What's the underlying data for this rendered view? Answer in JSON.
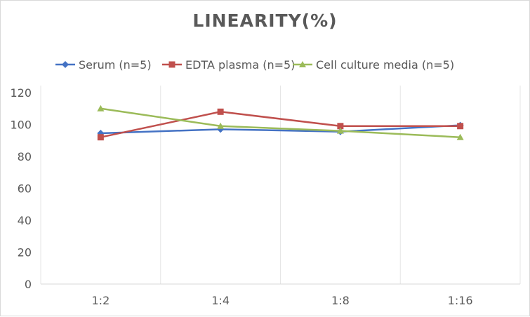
{
  "chart_data": {
    "type": "line",
    "title": "LINEARITY(%)",
    "categories": [
      "1:2",
      "1:4",
      "1:8",
      "1:16"
    ],
    "ylim": [
      0,
      120
    ],
    "yticks": [
      0,
      20,
      40,
      60,
      80,
      100,
      120
    ],
    "grid": "vertical",
    "legend": "top",
    "series": [
      {
        "name": "Serum (n=5)",
        "color": "#4472c4",
        "marker": "diamond",
        "values": [
          94.5,
          97,
          95.5,
          99.5
        ]
      },
      {
        "name": "EDTA plasma (n=5)",
        "color": "#c0504d",
        "marker": "square",
        "values": [
          92,
          108,
          99,
          99
        ]
      },
      {
        "name": "Cell culture media (n=5)",
        "color": "#9bbb59",
        "marker": "triangle",
        "values": [
          110,
          99,
          96,
          92
        ]
      }
    ]
  }
}
